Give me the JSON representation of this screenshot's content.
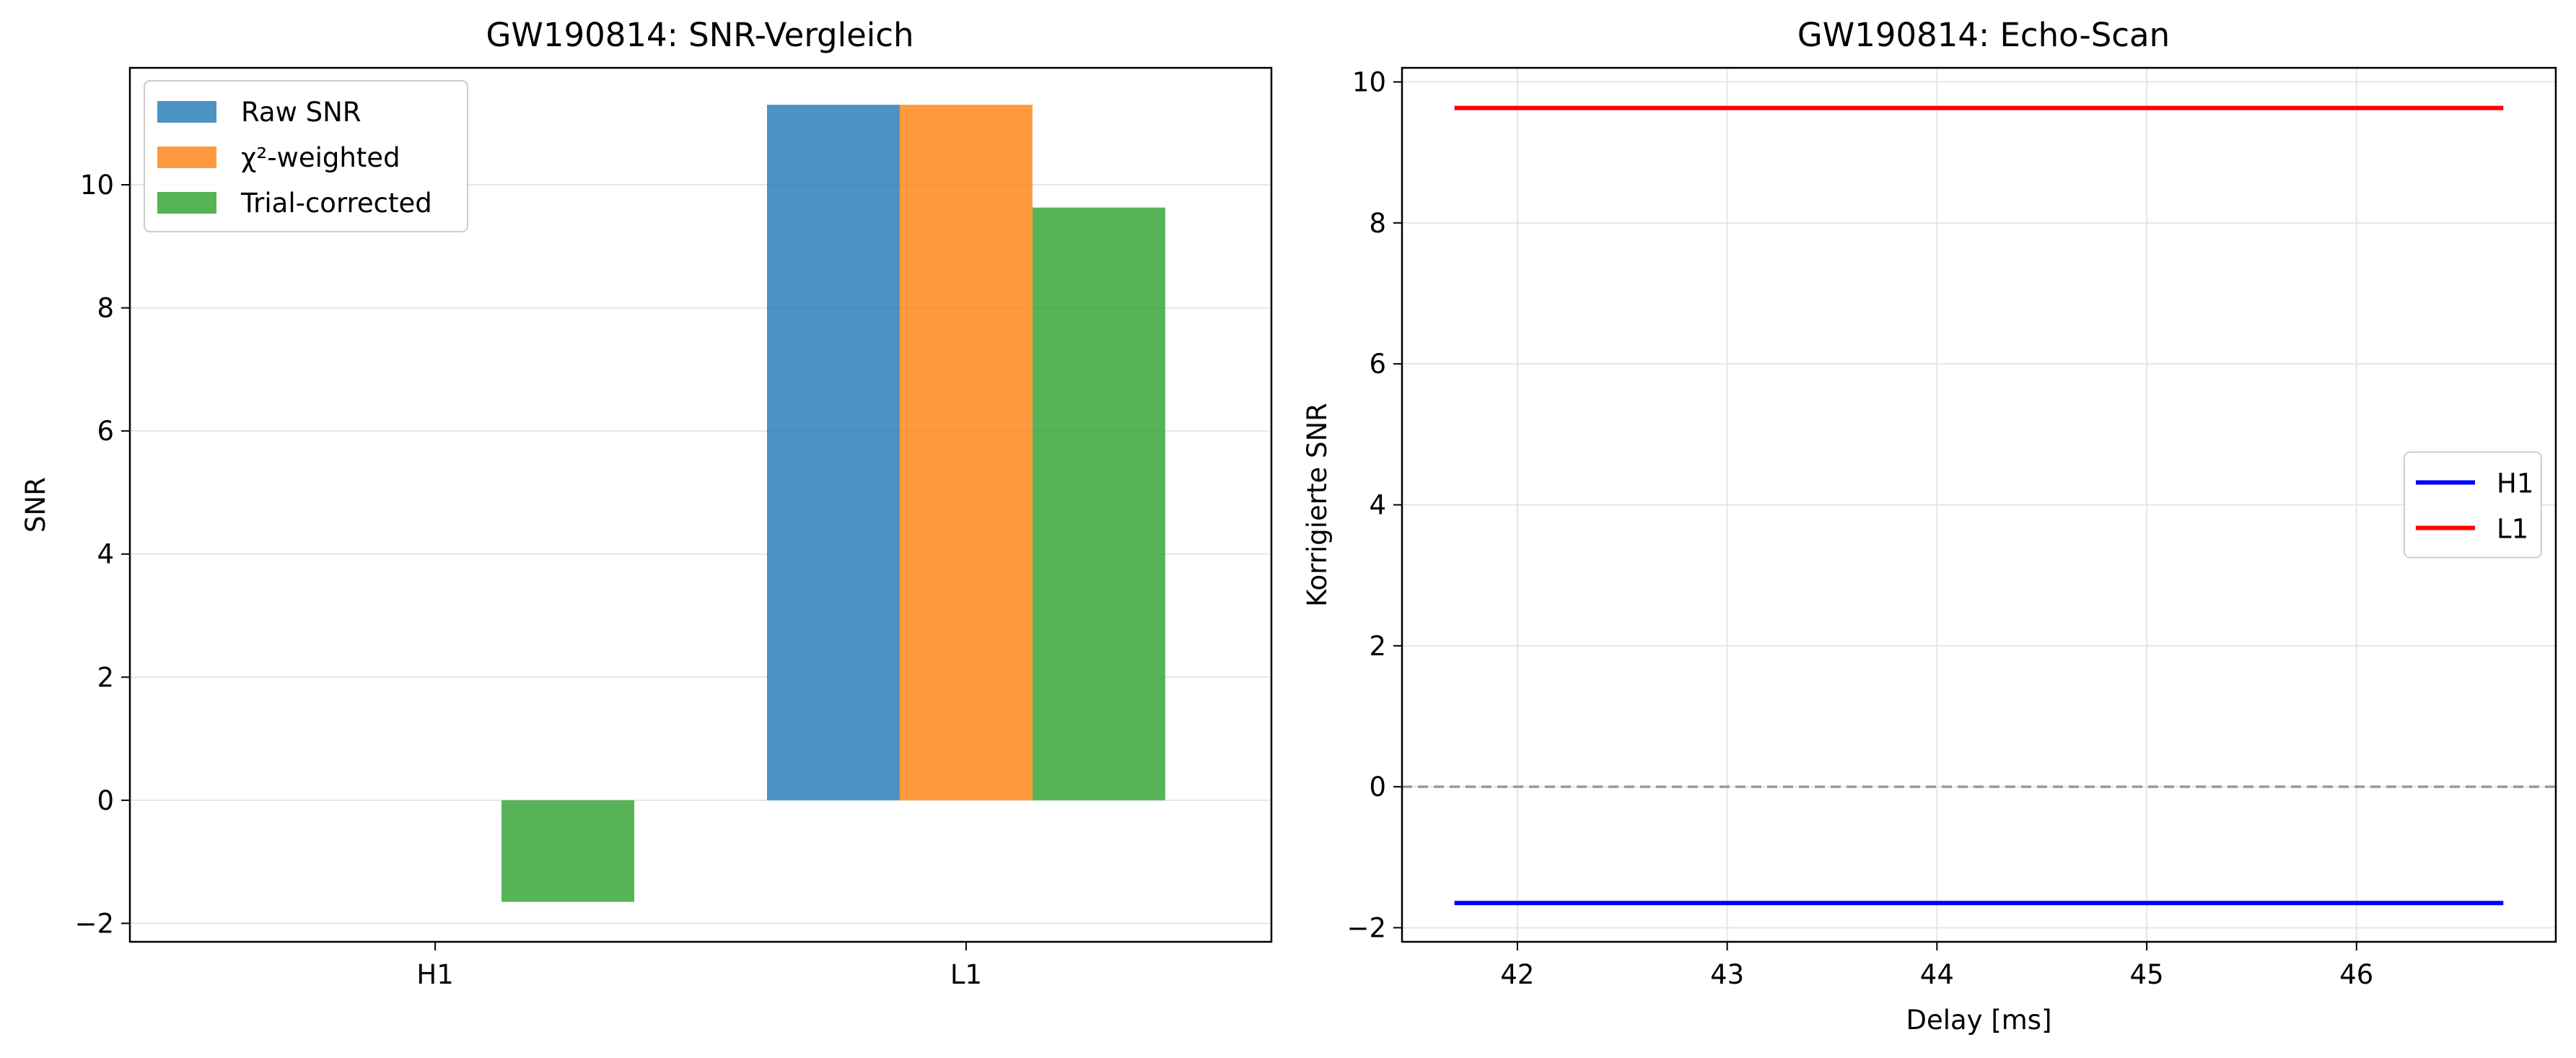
{
  "chart_data": [
    {
      "type": "bar",
      "title": "GW190814: SNR-Vergleich",
      "xlabel": "",
      "ylabel": "SNR",
      "categories": [
        "H1",
        "L1"
      ],
      "series": [
        {
          "name": "Raw SNR",
          "color": "#1f77b4",
          "values": [
            0,
            11.3
          ]
        },
        {
          "name": "χ²-weighted",
          "color": "#ff7f0e",
          "values": [
            0,
            11.3
          ]
        },
        {
          "name": "Trial-corrected",
          "color": "#2ca02c",
          "values": [
            -1.65,
            9.63
          ]
        }
      ],
      "ylim": [
        -2.3,
        11.9
      ],
      "yticks": [
        -2,
        0,
        2,
        4,
        6,
        8,
        10
      ],
      "grid": "y",
      "legend": "upper-left"
    },
    {
      "type": "line",
      "title": "GW190814: Echo-Scan",
      "xlabel": "Delay [ms]",
      "ylabel": "Korrigierte SNR",
      "series": [
        {
          "name": "H1",
          "color": "#0000ff",
          "x": [
            41.7,
            46.7
          ],
          "y": [
            -1.65,
            -1.65
          ]
        },
        {
          "name": "L1",
          "color": "#ff0000",
          "x": [
            41.7,
            46.7
          ],
          "y": [
            9.63,
            9.63
          ]
        }
      ],
      "reference_line": {
        "y": 0,
        "style": "dashed",
        "color": "#999999"
      },
      "xlim": [
        41.45,
        46.95
      ],
      "ylim": [
        -2.2,
        10.2
      ],
      "xticks": [
        42,
        43,
        44,
        45,
        46
      ],
      "yticks": [
        -2,
        0,
        2,
        4,
        6,
        8,
        10
      ],
      "grid": "both",
      "legend": "center-right"
    }
  ]
}
